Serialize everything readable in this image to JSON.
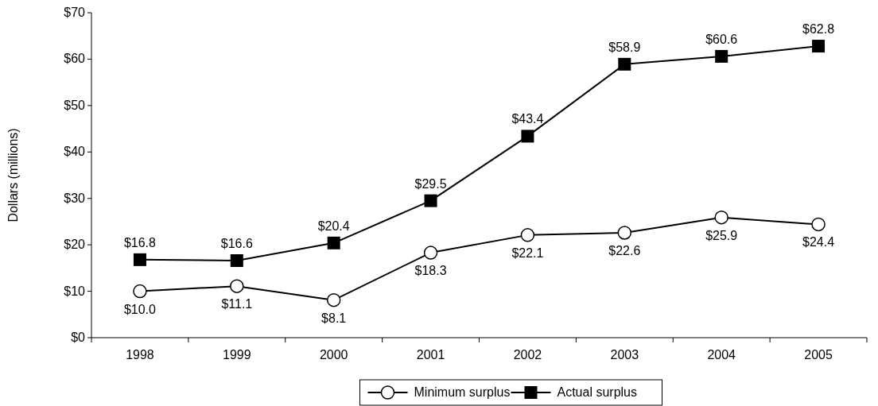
{
  "chart_data": {
    "type": "line",
    "ylabel": "Dollars (millions)",
    "categories": [
      "1998",
      "1999",
      "2000",
      "2001",
      "2002",
      "2003",
      "2004",
      "2005"
    ],
    "ylim": [
      0,
      70
    ],
    "yticks": [
      {
        "value": 0,
        "label": "$0"
      },
      {
        "value": 10,
        "label": "$10"
      },
      {
        "value": 20,
        "label": "$20"
      },
      {
        "value": 30,
        "label": "$30"
      },
      {
        "value": 40,
        "label": "$40"
      },
      {
        "value": 50,
        "label": "$50"
      },
      {
        "value": 60,
        "label": "$60"
      },
      {
        "value": 70,
        "label": "$70"
      }
    ],
    "grid": false,
    "legend": "bottom",
    "series": [
      {
        "name": "Minimum surplus",
        "color": "#000000",
        "marker": "circle",
        "values": [
          10.0,
          11.1,
          8.1,
          18.3,
          22.1,
          22.6,
          25.9,
          24.4
        ],
        "value_labels": [
          "$10.0",
          "$11.1",
          "$8.1",
          "$18.3",
          "$22.1",
          "$22.6",
          "$25.9",
          "$24.4"
        ]
      },
      {
        "name": "Actual surplus",
        "color": "#000000",
        "marker": "square",
        "values": [
          16.8,
          16.6,
          20.4,
          29.5,
          43.4,
          58.9,
          60.6,
          62.8
        ],
        "value_labels": [
          "$16.8",
          "$16.6",
          "$20.4",
          "$29.5",
          "$43.4",
          "$58.9",
          "$60.6",
          "$62.8"
        ]
      }
    ]
  }
}
